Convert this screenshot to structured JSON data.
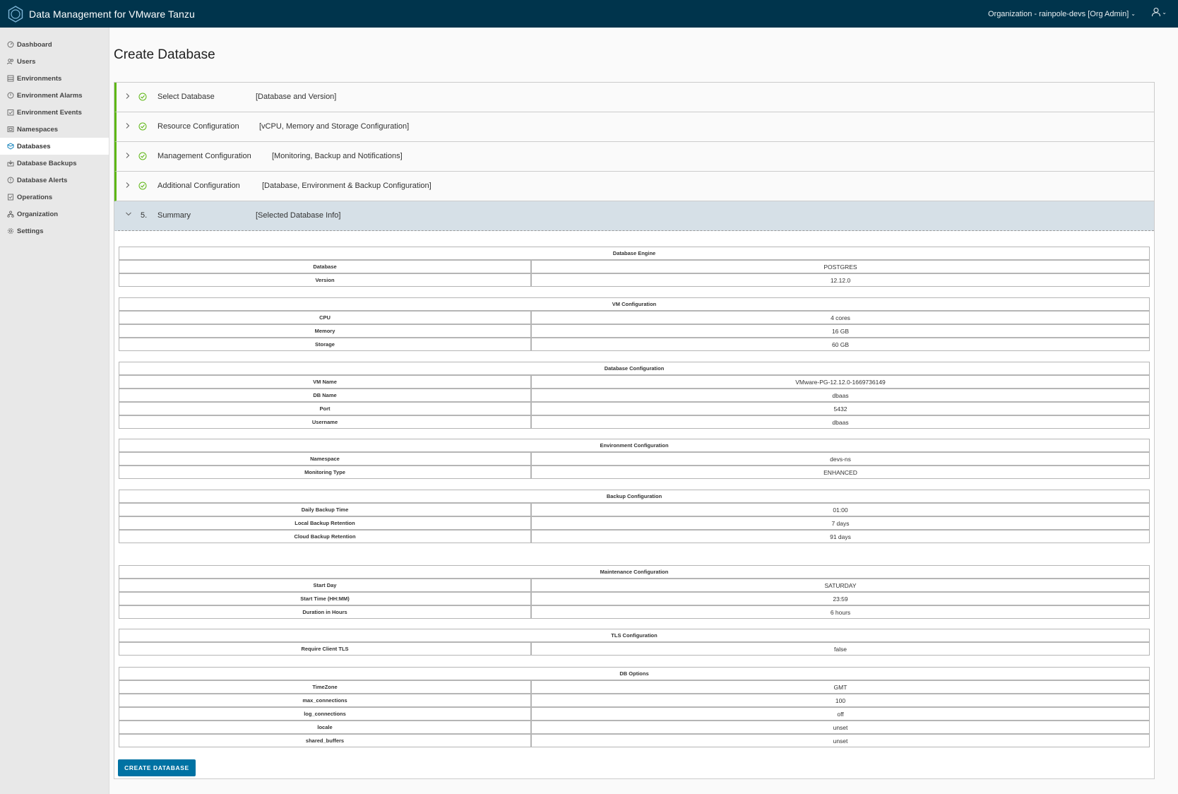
{
  "header": {
    "app_title": "Data Management for VMware Tanzu",
    "org_label": "Organization - rainpole-devs [Org Admin]",
    "logo_icon": "tanzu-logo-icon",
    "user_icon": "user-icon"
  },
  "sidebar": {
    "items": [
      {
        "label": "Dashboard",
        "icon": "dashboard-icon"
      },
      {
        "label": "Users",
        "icon": "users-icon"
      },
      {
        "label": "Environments",
        "icon": "environments-icon"
      },
      {
        "label": "Environment Alarms",
        "icon": "alarm-icon"
      },
      {
        "label": "Environment Events",
        "icon": "events-icon"
      },
      {
        "label": "Namespaces",
        "icon": "namespace-icon"
      },
      {
        "label": "Databases",
        "icon": "database-icon",
        "active": true
      },
      {
        "label": "Database Backups",
        "icon": "backup-icon"
      },
      {
        "label": "Database Alerts",
        "icon": "alert-icon"
      },
      {
        "label": "Operations",
        "icon": "operations-icon"
      },
      {
        "label": "Organization",
        "icon": "organization-icon"
      },
      {
        "label": "Settings",
        "icon": "gear-icon"
      }
    ]
  },
  "page": {
    "title": "Create Database"
  },
  "steps": [
    {
      "title": "Select Database",
      "desc": "[Database and Version]"
    },
    {
      "title": "Resource Configuration",
      "desc": "[vCPU, Memory and Storage Configuration]"
    },
    {
      "title": "Management Configuration",
      "desc": "[Monitoring, Backup and Notifications]"
    },
    {
      "title": "Additional Configuration",
      "desc": "[Database, Environment & Backup Configuration]"
    },
    {
      "num": "5.",
      "title": "Summary",
      "desc": "[Selected Database Info]"
    }
  ],
  "summary": {
    "engine": {
      "header": "Database Engine",
      "rows": [
        {
          "label": "Database",
          "value": "POSTGRES"
        },
        {
          "label": "Version",
          "value": "12.12.0"
        }
      ]
    },
    "vm": {
      "header": "VM Configuration",
      "rows": [
        {
          "label": "CPU",
          "value": "4 cores"
        },
        {
          "label": "Memory",
          "value": "16 GB"
        },
        {
          "label": "Storage",
          "value": "60 GB"
        }
      ]
    },
    "dbconf": {
      "header": "Database Configuration",
      "rows": [
        {
          "label": "VM Name",
          "value": "VMware-PG-12.12.0-1669736149"
        },
        {
          "label": "DB Name",
          "value": "dbaas"
        },
        {
          "label": "Port",
          "value": "5432"
        },
        {
          "label": "Username",
          "value": "dbaas"
        }
      ]
    },
    "env": {
      "header": "Environment Configuration",
      "rows": [
        {
          "label": "Namespace",
          "value": "devs-ns"
        },
        {
          "label": "Monitoring Type",
          "value": "ENHANCED"
        }
      ]
    },
    "backup": {
      "header": "Backup Configuration",
      "rows": [
        {
          "label": "Daily Backup Time",
          "value": "01:00"
        },
        {
          "label": "Local Backup Retention",
          "value": "7 days"
        },
        {
          "label": "Cloud Backup Retention",
          "value": "91 days"
        }
      ]
    },
    "maint": {
      "header": "Maintenance Configuration",
      "rows": [
        {
          "label": "Start Day",
          "value": "SATURDAY"
        },
        {
          "label": "Start Time (HH:MM)",
          "value": "23:59"
        },
        {
          "label": "Duration in Hours",
          "value": "6 hours"
        }
      ]
    },
    "tls": {
      "header": "TLS Configuration",
      "rows": [
        {
          "label": "Require Client TLS",
          "value": "false"
        }
      ]
    },
    "dbopts": {
      "header": "DB Options",
      "rows": [
        {
          "label": "TimeZone",
          "value": "GMT"
        },
        {
          "label": "max_connections",
          "value": "100"
        },
        {
          "label": "log_connections",
          "value": "off"
        },
        {
          "label": "locale",
          "value": "unset"
        },
        {
          "label": "shared_buffers",
          "value": "unset"
        }
      ]
    }
  },
  "actions": {
    "create_label": "CREATE DATABASE"
  }
}
